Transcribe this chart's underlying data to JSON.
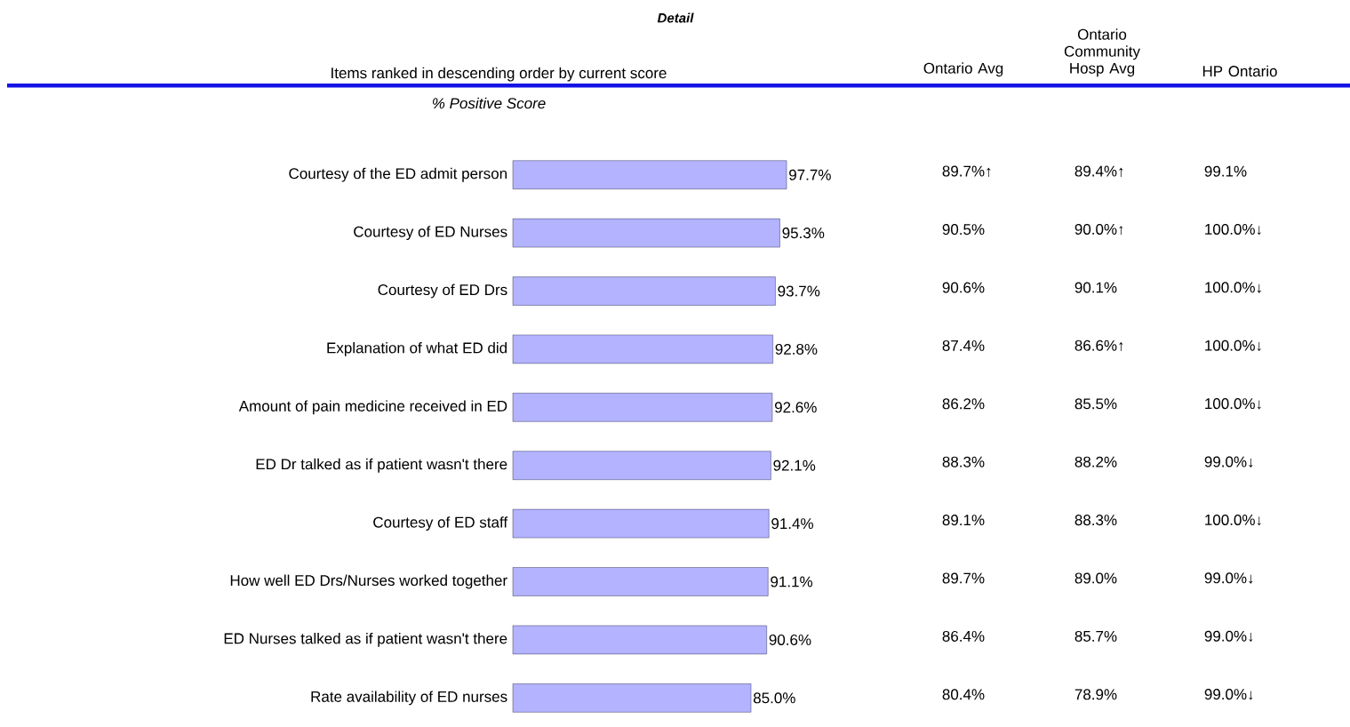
{
  "chart_data": {
    "type": "bar",
    "orientation": "horizontal",
    "title": "Detail",
    "subtitle": "Items ranked in descending order by current score",
    "xlabel": "% Positive Score",
    "categories": [
      "Courtesy of the ED admit person",
      "Courtesy of ED Nurses",
      "Courtesy of ED Drs",
      "Explanation of what ED did",
      "Amount of pain medicine received in ED",
      "ED Dr talked as if patient wasn't there",
      "Courtesy of ED staff",
      "How well ED Drs/Nurses worked together",
      "ED Nurses talked as if patient wasn't there",
      "Rate availability of ED nurses"
    ],
    "values": [
      97.7,
      95.3,
      93.7,
      92.8,
      92.6,
      92.1,
      91.4,
      91.1,
      90.6,
      85.0
    ],
    "value_labels": [
      "97.7%",
      "95.3%",
      "93.7%",
      "92.8%",
      "92.6%",
      "92.1%",
      "91.4%",
      "91.1%",
      "90.6%",
      "85.0%"
    ],
    "color": "#b3b3ff",
    "annotations": [
      "Ontario Avg",
      "Ontario Community Hosp Avg",
      "HP Ontario",
      "89.7%↑",
      "89.4%↑",
      "99.1%",
      "90.5%",
      "90.0%↑",
      "100.0%↓",
      "90.6%",
      "90.1%",
      "100.0%↓",
      "87.4%",
      "86.6%↑",
      "100.0%↓",
      "86.2%",
      "85.5%",
      "100.0%↓",
      "88.3%",
      "88.2%",
      "99.0%↓",
      "89.1%",
      "88.3%",
      "100.0%↓",
      "89.7%",
      "89.0%",
      "99.0%↓",
      "86.4%",
      "85.7%",
      "99.0%↓",
      "80.4%",
      "78.9%",
      "99.0%↓"
    ]
  }
}
